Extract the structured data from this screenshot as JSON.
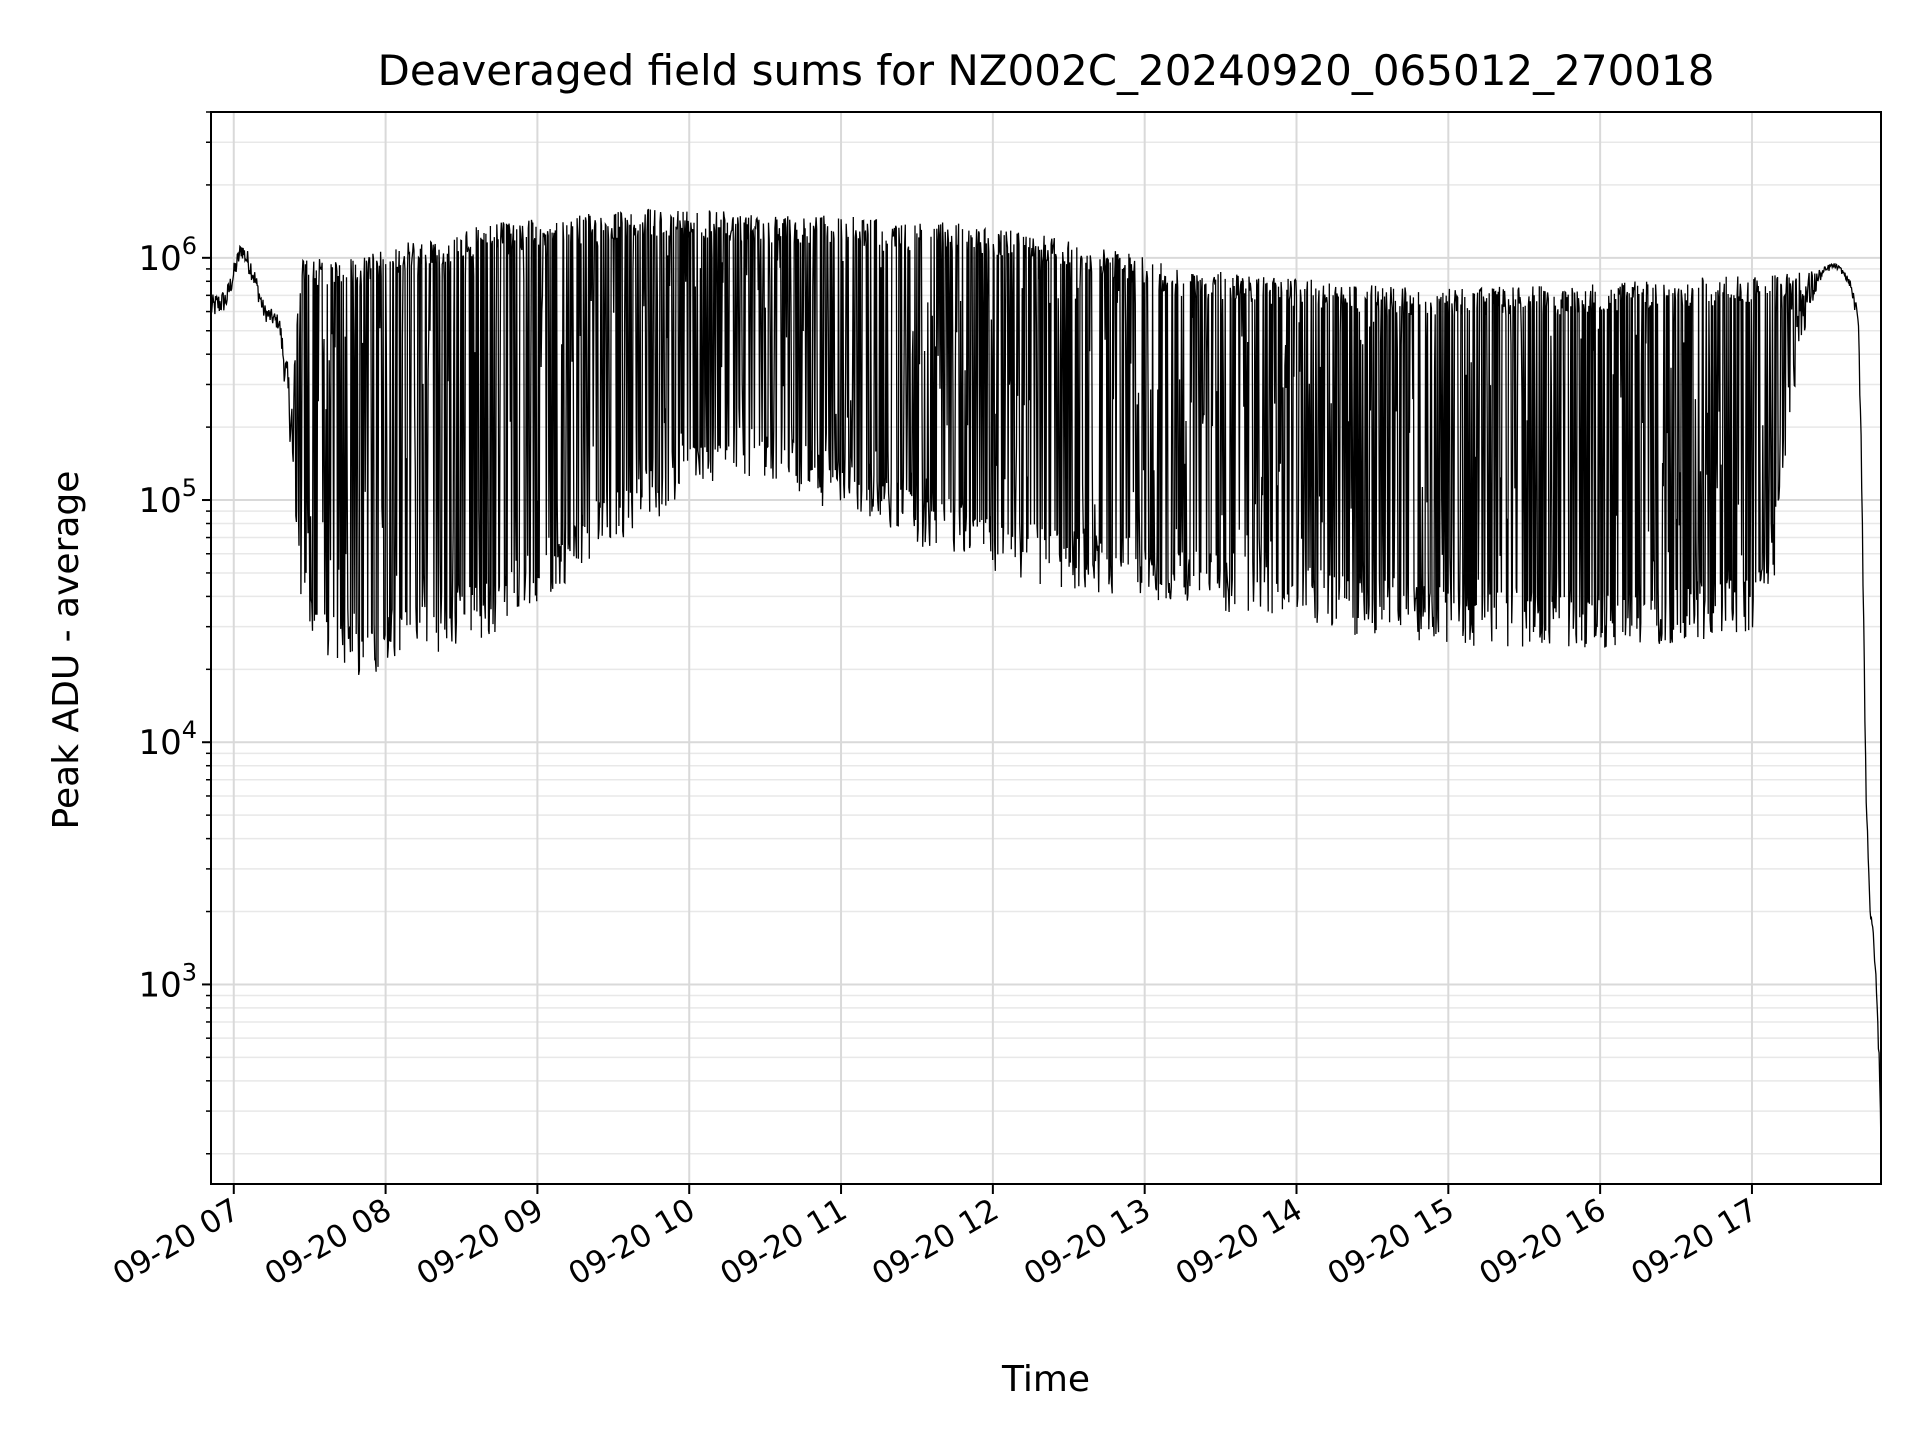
{
  "chart_data": {
    "type": "line",
    "title": "Deaveraged field sums for NZ002C_20240920_065012_270018",
    "xlabel": "Time",
    "ylabel": "Peak ADU - average",
    "y_scale": "log",
    "ylim": [
      150,
      4000000
    ],
    "xlim_hours": [
      6.85,
      17.85
    ],
    "x_ticks": [
      {
        "label": "09-20 07",
        "hour": 7
      },
      {
        "label": "09-20 08",
        "hour": 8
      },
      {
        "label": "09-20 09",
        "hour": 9
      },
      {
        "label": "09-20 10",
        "hour": 10
      },
      {
        "label": "09-20 11",
        "hour": 11
      },
      {
        "label": "09-20 12",
        "hour": 12
      },
      {
        "label": "09-20 13",
        "hour": 13
      },
      {
        "label": "09-20 14",
        "hour": 14
      },
      {
        "label": "09-20 15",
        "hour": 15
      },
      {
        "label": "09-20 16",
        "hour": 16
      },
      {
        "label": "09-20 17",
        "hour": 17
      }
    ],
    "y_ticks": [
      {
        "base": "10",
        "exp": "3",
        "value": 1000
      },
      {
        "base": "10",
        "exp": "4",
        "value": 10000
      },
      {
        "base": "10",
        "exp": "5",
        "value": 100000
      },
      {
        "base": "10",
        "exp": "6",
        "value": 1000000
      }
    ],
    "grid": true,
    "line_color": "#000000",
    "series": [
      {
        "hours": [
          6.85,
          6.95,
          7.05,
          7.12,
          7.2,
          7.3,
          7.38,
          7.45,
          7.52,
          7.6,
          7.75,
          7.85,
          8.0,
          8.25,
          8.5,
          8.75,
          9.0,
          9.25,
          9.5,
          9.75,
          10.0,
          10.25,
          10.5,
          10.75,
          11.0,
          11.25,
          11.5,
          11.75,
          12.0,
          12.25,
          12.5,
          12.75,
          13.0,
          13.25,
          13.5,
          13.75,
          14.0,
          14.25,
          14.5,
          14.75,
          15.0,
          15.25,
          15.5,
          15.75,
          16.0,
          16.25,
          16.5,
          16.75,
          17.0,
          17.15,
          17.3,
          17.45,
          17.52,
          17.55,
          17.6,
          17.65,
          17.7,
          17.72,
          17.75,
          17.78,
          17.8,
          17.82,
          17.84,
          17.85
        ],
        "peak": [
          700000,
          750000,
          1200000,
          1000000,
          650000,
          580000,
          300000,
          1000000,
          1000000,
          1000000,
          1000000,
          1000000,
          1100000,
          1200000,
          1300000,
          1400000,
          1450000,
          1500000,
          1550000,
          1600000,
          1600000,
          1550000,
          1500000,
          1500000,
          1500000,
          1450000,
          1400000,
          1400000,
          1350000,
          1300000,
          1200000,
          1100000,
          1000000,
          900000,
          880000,
          850000,
          820000,
          800000,
          780000,
          760000,
          760000,
          760000,
          760000,
          770000,
          780000,
          800000,
          820000,
          840000,
          860000,
          870000,
          880000,
          900000,
          950000,
          950000,
          900000,
          800000,
          600000,
          200000,
          8000,
          2000,
          1700,
          1000,
          500,
          220
        ],
        "floor": [
          550000,
          600000,
          1000000,
          800000,
          550000,
          500000,
          150000,
          40000,
          30000,
          28000,
          25000,
          22000,
          25000,
          28000,
          30000,
          35000,
          45000,
          60000,
          80000,
          100000,
          120000,
          150000,
          140000,
          120000,
          110000,
          100000,
          80000,
          70000,
          60000,
          55000,
          52000,
          50000,
          48000,
          45000,
          42000,
          40000,
          38000,
          35000,
          33000,
          32000,
          31000,
          30000,
          30000,
          30000,
          30000,
          30000,
          31000,
          33000,
          35000,
          60000,
          400000,
          800000,
          900000,
          900000,
          850000,
          750000,
          500000,
          150000,
          6000,
          1800,
          1500,
          900,
          400,
          200
        ]
      }
    ]
  }
}
